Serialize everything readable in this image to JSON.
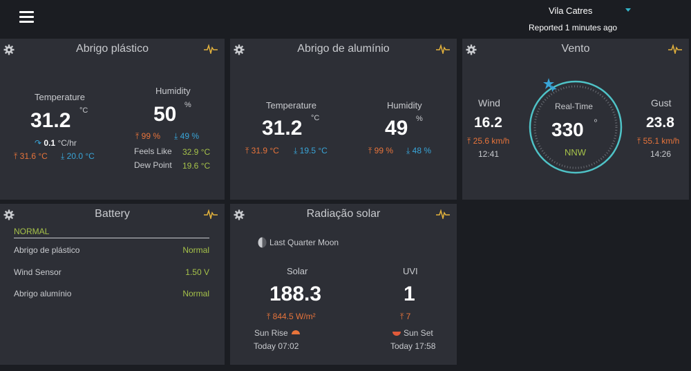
{
  "header": {
    "station": "Vila Catres",
    "reported": "Reported 1 minutes ago"
  },
  "cards": {
    "abrigo_plastico": {
      "title": "Abrigo plástico",
      "temp_label": "Temperature",
      "temp_value": "31.2",
      "temp_unit": "°C",
      "trend_value": "0.1",
      "trend_unit": "°C/hr",
      "temp_high": "31.6 °C",
      "temp_low": "20.0 °C",
      "hum_label": "Humidity",
      "hum_value": "50",
      "hum_unit": "%",
      "hum_high": "99 %",
      "hum_low": "49 %",
      "feels_label": "Feels Like",
      "feels_value": "32.9 °C",
      "dew_label": "Dew Point",
      "dew_value": "19.6 °C"
    },
    "abrigo_aluminio": {
      "title": "Abrigo de alumínio",
      "temp_label": "Temperature",
      "temp_value": "31.2",
      "temp_unit": "°C",
      "temp_high": "31.9 °C",
      "temp_low": "19.5 °C",
      "hum_label": "Humidity",
      "hum_value": "49",
      "hum_unit": "%",
      "hum_high": "99 %",
      "hum_low": "48 %"
    },
    "vento": {
      "title": "Vento",
      "wind_label": "Wind",
      "wind_value": "16.2",
      "wind_high": "25.6 km/h",
      "wind_time": "12:41",
      "realtime_label": "Real-Time",
      "direction_deg": "330",
      "direction_unit": "º",
      "direction_name": "NNW",
      "gust_label": "Gust",
      "gust_value": "23.8",
      "gust_high": "55.1 km/h",
      "gust_time": "14:26"
    },
    "battery": {
      "title": "Battery",
      "status": "NORMAL",
      "items": [
        {
          "label": "Abrigo de plástico",
          "value": "Normal"
        },
        {
          "label": "Wind Sensor",
          "value": "1.50 V"
        },
        {
          "label": "Abrigo alumínio",
          "value": "Normal"
        }
      ]
    },
    "radiacao": {
      "title": "Radiação solar",
      "moon_phase": "Last Quarter Moon",
      "solar_label": "Solar",
      "solar_value": "188.3",
      "solar_high": "844.5 W/m²",
      "uvi_label": "UVI",
      "uvi_value": "1",
      "uvi_high": "7",
      "sunrise_label": "Sun Rise",
      "sunrise_time": "Today 07:02",
      "sunset_label": "Sun Set",
      "sunset_time": "Today 17:58"
    }
  },
  "colors": {
    "card_bg": "#2d2f36",
    "page_bg": "#1b1d22",
    "high": "#e8743b",
    "low": "#39a5d8",
    "positive": "#a6c24a",
    "compass_ring": "#4fc3c7",
    "pulse_icon": "#e3b23c"
  }
}
